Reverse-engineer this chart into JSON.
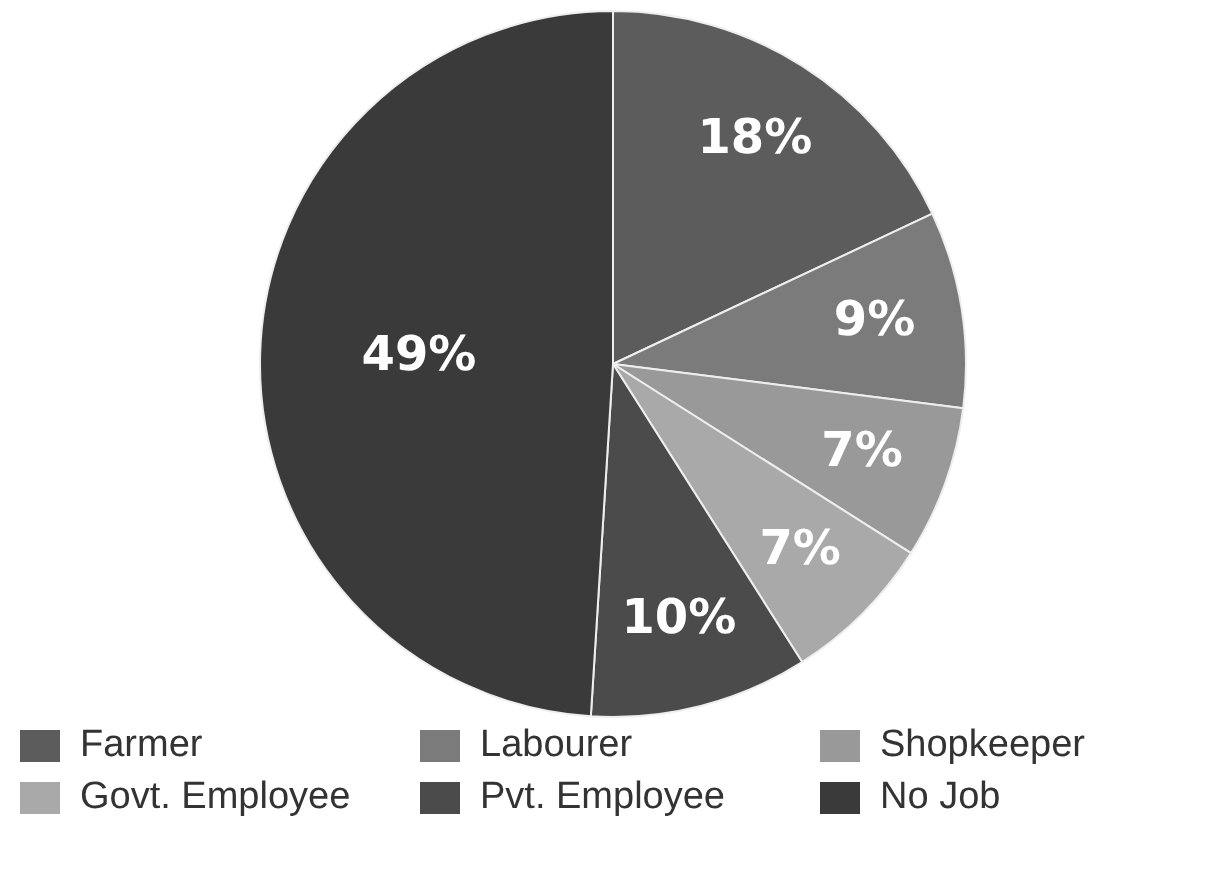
{
  "chart_data": {
    "type": "pie",
    "categories": [
      "Farmer",
      "Labourer",
      "Shopkeeper",
      "Govt. Employee",
      "Pvt. Employee",
      "No Job"
    ],
    "values": [
      18,
      9,
      7,
      7,
      10,
      49
    ],
    "colors": [
      "#5c5c5c",
      "#7b7b7b",
      "#999999",
      "#a9a9a9",
      "#4b4b4b",
      "#3a3a3a"
    ],
    "value_labels": [
      "18%",
      "9%",
      "7%",
      "7%",
      "10%",
      "49%"
    ],
    "legend": "bottom"
  }
}
